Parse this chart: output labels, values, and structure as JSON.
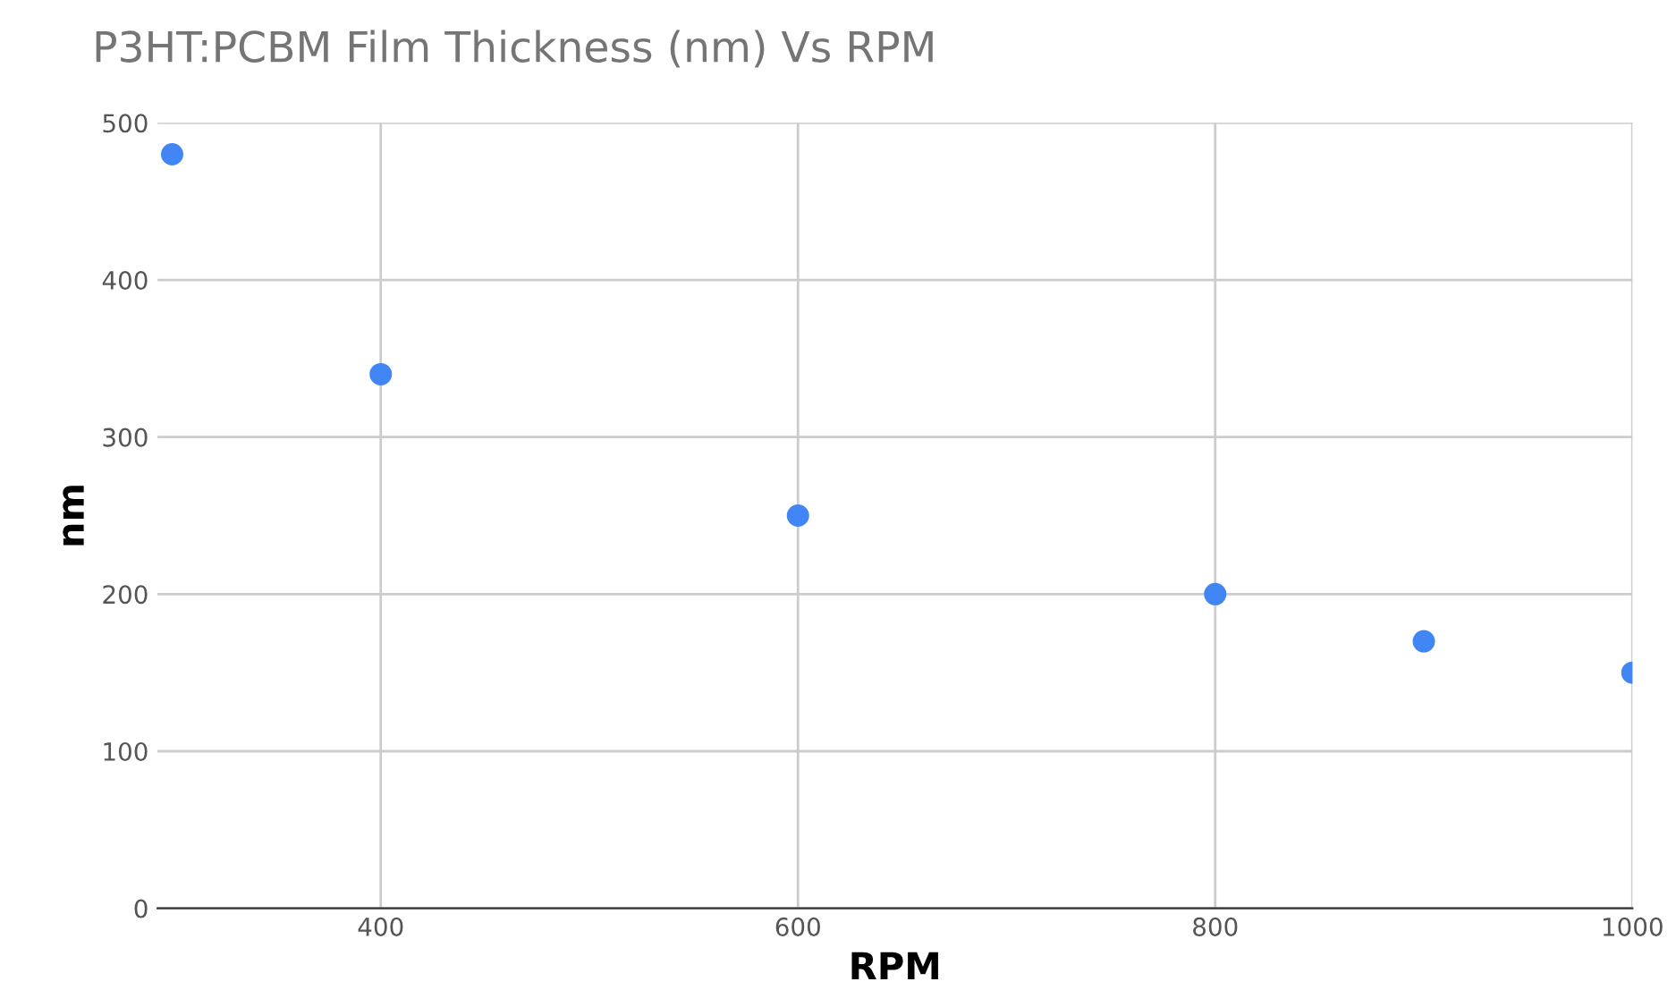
{
  "chart_data": {
    "type": "scatter",
    "title": "P3HT:PCBM Film Thickness (nm) Vs RPM",
    "xlabel": "RPM",
    "ylabel": "nm",
    "x": [
      300,
      400,
      600,
      800,
      900,
      1000
    ],
    "values": [
      480,
      340,
      250,
      200,
      170,
      150
    ],
    "color": "#4285f4",
    "marker": "circle",
    "xlim": [
      293,
      1000
    ],
    "xticks": [
      400,
      600,
      800,
      1000
    ],
    "ylim": [
      0,
      500
    ],
    "yticks": [
      0,
      100,
      200,
      300,
      400,
      500
    ],
    "grid": true,
    "legend": false
  }
}
